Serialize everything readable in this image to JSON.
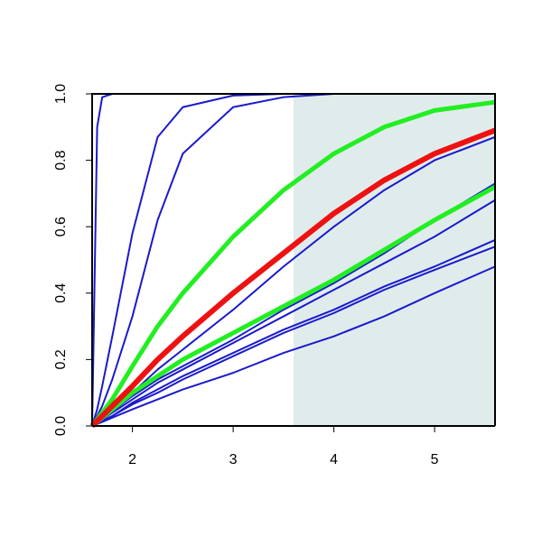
{
  "chart_data": {
    "type": "line",
    "x": [
      1.6,
      1.65,
      1.7,
      1.8,
      2,
      2.25,
      2.5,
      3,
      3.5,
      4,
      4.5,
      5,
      5.6
    ],
    "xlim": [
      1.6,
      5.6
    ],
    "ylim": [
      0,
      1
    ],
    "xticks": [
      2,
      3,
      4,
      5
    ],
    "yticks": [
      {
        "value": 0,
        "label": "0.0"
      },
      {
        "value": 0.2,
        "label": "0.2"
      },
      {
        "value": 0.4,
        "label": "0.4"
      },
      {
        "value": 0.6,
        "label": "0.6"
      },
      {
        "value": 0.8,
        "label": "0.8"
      },
      {
        "value": 1,
        "label": "1.0"
      }
    ],
    "shade": {
      "xlim": [
        3.6,
        5.6
      ],
      "color": "#e0ecec"
    },
    "series": [
      {
        "color": "#1a1acc",
        "line_width": 2,
        "values": [
          0,
          0.9,
          0.99,
          1,
          1,
          1,
          1,
          1,
          1,
          1,
          1,
          1,
          1
        ]
      },
      {
        "color": "#1a1acc",
        "line_width": 2,
        "values": [
          0,
          0.05,
          0.12,
          0.27,
          0.58,
          0.87,
          0.96,
          0.995,
          1,
          1,
          1,
          1,
          1
        ]
      },
      {
        "color": "#1a1acc",
        "line_width": 2,
        "values": [
          0,
          0.03,
          0.06,
          0.14,
          0.33,
          0.62,
          0.82,
          0.96,
          0.99,
          1,
          1,
          1,
          1
        ]
      },
      {
        "color": "#1a1acc",
        "line_width": 2,
        "values": [
          0,
          0.013,
          0.027,
          0.05,
          0.1,
          0.17,
          0.23,
          0.35,
          0.48,
          0.6,
          0.71,
          0.8,
          0.87
        ]
      },
      {
        "color": "#1a1acc",
        "line_width": 2,
        "values": [
          0,
          0.01,
          0.02,
          0.045,
          0.09,
          0.14,
          0.18,
          0.26,
          0.35,
          0.43,
          0.52,
          0.62,
          0.73
        ]
      },
      {
        "color": "#1a1acc",
        "line_width": 2,
        "values": [
          0,
          0.01,
          0.02,
          0.04,
          0.08,
          0.13,
          0.17,
          0.25,
          0.33,
          0.41,
          0.49,
          0.57,
          0.68
        ]
      },
      {
        "color": "#1a1acc",
        "line_width": 2,
        "values": [
          0,
          0.008,
          0.016,
          0.03,
          0.07,
          0.11,
          0.15,
          0.22,
          0.29,
          0.35,
          0.42,
          0.48,
          0.56
        ]
      },
      {
        "color": "#1a1acc",
        "line_width": 2,
        "values": [
          0,
          0.008,
          0.015,
          0.03,
          0.065,
          0.1,
          0.14,
          0.21,
          0.28,
          0.34,
          0.41,
          0.47,
          0.54
        ]
      },
      {
        "color": "#1a1acc",
        "line_width": 2,
        "values": [
          0,
          0.006,
          0.012,
          0.025,
          0.05,
          0.08,
          0.11,
          0.16,
          0.22,
          0.27,
          0.33,
          0.4,
          0.48
        ]
      },
      {
        "color": "#22ee22",
        "line_width": 5,
        "values": [
          0,
          0.02,
          0.04,
          0.08,
          0.18,
          0.3,
          0.4,
          0.57,
          0.71,
          0.82,
          0.9,
          0.95,
          0.975
        ]
      },
      {
        "color": "#22ee22",
        "line_width": 5,
        "values": [
          0,
          0.012,
          0.025,
          0.05,
          0.1,
          0.15,
          0.2,
          0.28,
          0.36,
          0.44,
          0.53,
          0.62,
          0.72
        ]
      },
      {
        "color": "#ee1111",
        "line_width": 6,
        "values": [
          0,
          0.015,
          0.03,
          0.06,
          0.12,
          0.2,
          0.27,
          0.4,
          0.52,
          0.64,
          0.74,
          0.82,
          0.89
        ]
      }
    ]
  }
}
